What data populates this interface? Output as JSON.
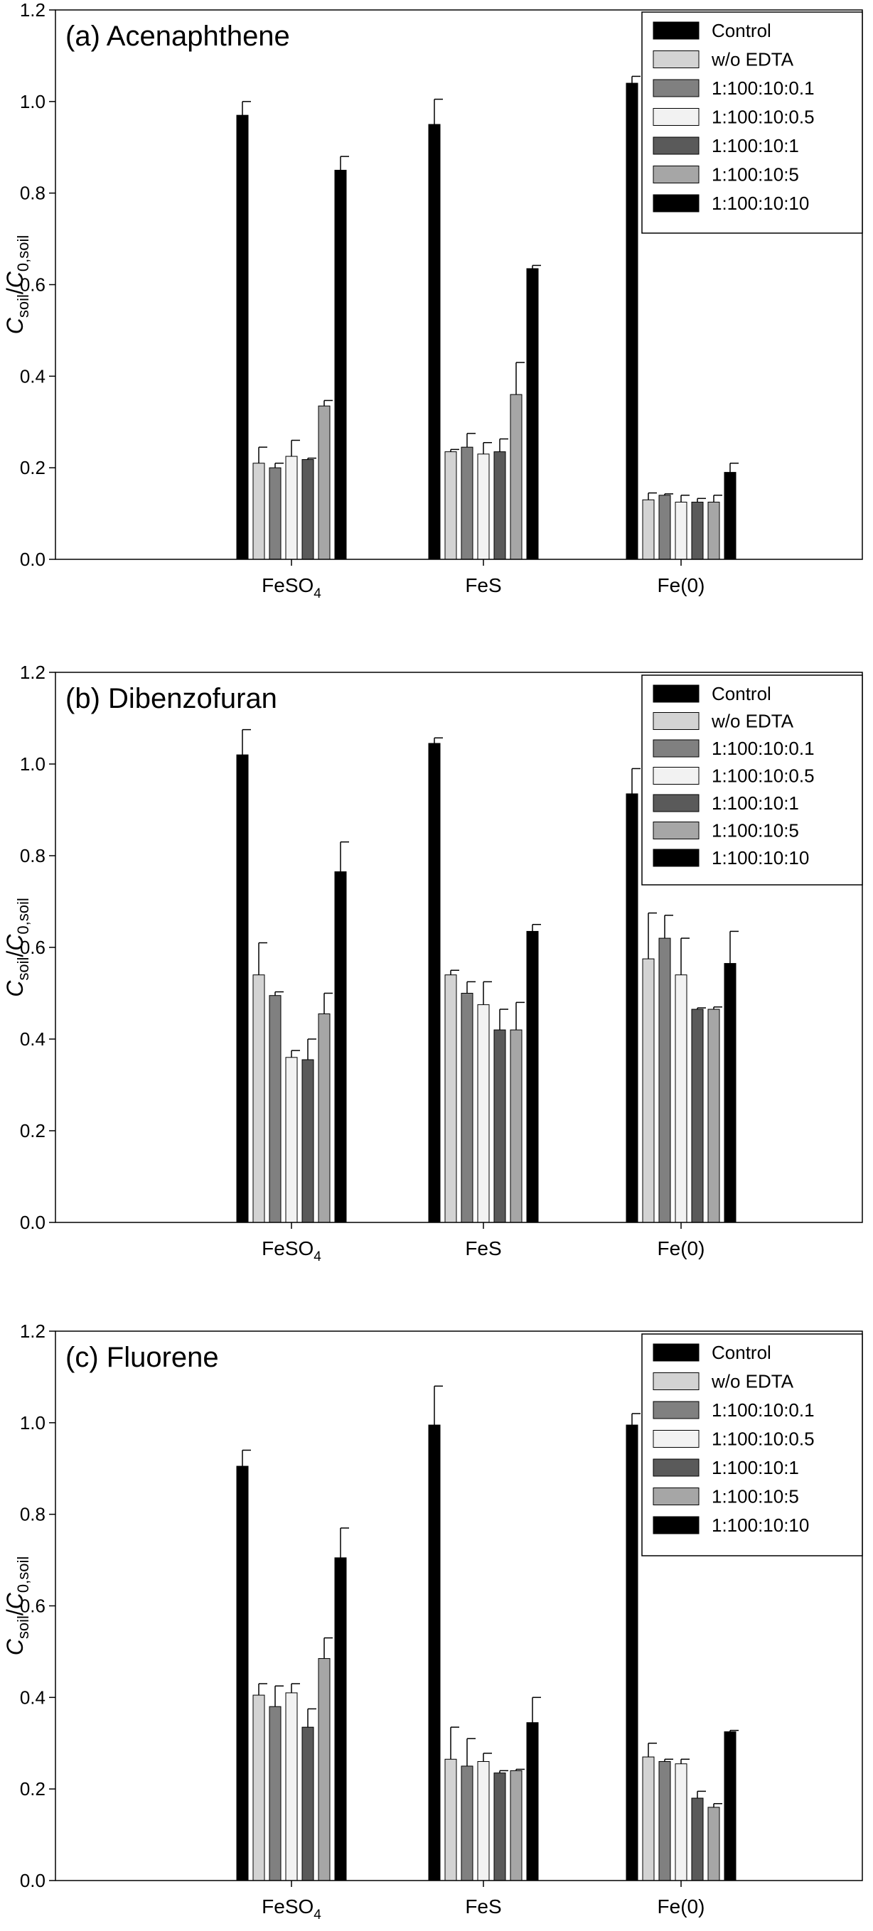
{
  "figure": {
    "series_colors": [
      "#000000",
      "#d3d3d3",
      "#808080",
      "#f2f2f2",
      "#5a5a5a",
      "#a6a6a6",
      "#000000"
    ],
    "error_bar_color": "#000000"
  },
  "chart_data": [
    {
      "type": "bar",
      "title": "(a) Acenaphthene",
      "ylabel": {
        "main": "C",
        "sub1": "soil",
        "sep": "/",
        "main2": "C",
        "sub2": "0,soil"
      },
      "ylim": [
        0,
        1.2
      ],
      "yticks": [
        "0.0",
        "0.2",
        "0.4",
        "0.6",
        "0.8",
        "1.0",
        "1.2"
      ],
      "categories": [
        {
          "base": "FeSO",
          "sub": "4"
        },
        {
          "base": "FeS",
          "sub": ""
        },
        {
          "base": "Fe(0)",
          "sub": ""
        }
      ],
      "legend_position": "top-right",
      "grid": false,
      "series": [
        {
          "name": "Control",
          "values": [
            0.97,
            0.95,
            1.04
          ],
          "errors": [
            0.03,
            0.055,
            0.015
          ]
        },
        {
          "name": "w/o EDTA",
          "values": [
            0.21,
            0.235,
            0.13
          ],
          "errors": [
            0.035,
            0.005,
            0.015
          ]
        },
        {
          "name": "1:100:10:0.1",
          "values": [
            0.2,
            0.245,
            0.14
          ],
          "errors": [
            0.01,
            0.03,
            0.003
          ]
        },
        {
          "name": "1:100:10:0.5",
          "values": [
            0.225,
            0.23,
            0.125
          ],
          "errors": [
            0.035,
            0.025,
            0.015
          ]
        },
        {
          "name": "1:100:10:1",
          "values": [
            0.218,
            0.235,
            0.125
          ],
          "errors": [
            0.003,
            0.028,
            0.008
          ]
        },
        {
          "name": "1:100:10:5",
          "values": [
            0.335,
            0.36,
            0.125
          ],
          "errors": [
            0.012,
            0.07,
            0.015
          ]
        },
        {
          "name": "1:100:10:10",
          "values": [
            0.85,
            0.635,
            0.19
          ],
          "errors": [
            0.03,
            0.007,
            0.02
          ]
        }
      ]
    },
    {
      "type": "bar",
      "title": "(b) Dibenzofuran",
      "ylabel": {
        "main": "C",
        "sub1": "soil",
        "sep": "/",
        "main2": "C",
        "sub2": "0,soil"
      },
      "ylim": [
        0,
        1.2
      ],
      "yticks": [
        "0.0",
        "0.2",
        "0.4",
        "0.6",
        "0.8",
        "1.0",
        "1.2"
      ],
      "categories": [
        {
          "base": "FeSO",
          "sub": "4"
        },
        {
          "base": "FeS",
          "sub": ""
        },
        {
          "base": "Fe(0)",
          "sub": ""
        }
      ],
      "legend_position": "top-right",
      "grid": false,
      "series": [
        {
          "name": "Control",
          "values": [
            1.02,
            1.045,
            0.935
          ],
          "errors": [
            0.055,
            0.012,
            0.055
          ]
        },
        {
          "name": "w/o EDTA",
          "values": [
            0.54,
            0.54,
            0.575
          ],
          "errors": [
            0.07,
            0.01,
            0.1
          ]
        },
        {
          "name": "1:100:10:0.1",
          "values": [
            0.495,
            0.5,
            0.62
          ],
          "errors": [
            0.008,
            0.025,
            0.05
          ]
        },
        {
          "name": "1:100:10:0.5",
          "values": [
            0.36,
            0.475,
            0.54
          ],
          "errors": [
            0.015,
            0.05,
            0.08
          ]
        },
        {
          "name": "1:100:10:1",
          "values": [
            0.355,
            0.42,
            0.465
          ],
          "errors": [
            0.045,
            0.045,
            0.003
          ]
        },
        {
          "name": "1:100:10:5",
          "values": [
            0.455,
            0.42,
            0.465
          ],
          "errors": [
            0.045,
            0.06,
            0.005
          ]
        },
        {
          "name": "1:100:10:10",
          "values": [
            0.765,
            0.635,
            0.565
          ],
          "errors": [
            0.065,
            0.015,
            0.07
          ]
        }
      ]
    },
    {
      "type": "bar",
      "title": "(c) Fluorene",
      "ylabel": {
        "main": "C",
        "sub1": "soil",
        "sep": "/",
        "main2": "C",
        "sub2": "0,soil"
      },
      "ylim": [
        0,
        1.2
      ],
      "yticks": [
        "0.0",
        "0.2",
        "0.4",
        "0.6",
        "0.8",
        "1.0",
        "1.2"
      ],
      "categories": [
        {
          "base": "FeSO",
          "sub": "4"
        },
        {
          "base": "FeS",
          "sub": ""
        },
        {
          "base": "Fe(0)",
          "sub": ""
        }
      ],
      "legend_position": "top-right",
      "grid": false,
      "series": [
        {
          "name": "Control",
          "values": [
            0.905,
            0.995,
            0.995
          ],
          "errors": [
            0.035,
            0.085,
            0.025
          ]
        },
        {
          "name": "w/o EDTA",
          "values": [
            0.405,
            0.265,
            0.27
          ],
          "errors": [
            0.025,
            0.07,
            0.03
          ]
        },
        {
          "name": "1:100:10:0.1",
          "values": [
            0.38,
            0.25,
            0.26
          ],
          "errors": [
            0.045,
            0.06,
            0.005
          ]
        },
        {
          "name": "1:100:10:0.5",
          "values": [
            0.41,
            0.26,
            0.255
          ],
          "errors": [
            0.02,
            0.018,
            0.01
          ]
        },
        {
          "name": "1:100:10:1",
          "values": [
            0.335,
            0.235,
            0.18
          ],
          "errors": [
            0.04,
            0.005,
            0.015
          ]
        },
        {
          "name": "1:100:10:5",
          "values": [
            0.485,
            0.24,
            0.16
          ],
          "errors": [
            0.045,
            0.003,
            0.008
          ]
        },
        {
          "name": "1:100:10:10",
          "values": [
            0.705,
            0.345,
            0.325
          ],
          "errors": [
            0.065,
            0.055,
            0.003
          ]
        }
      ]
    }
  ]
}
